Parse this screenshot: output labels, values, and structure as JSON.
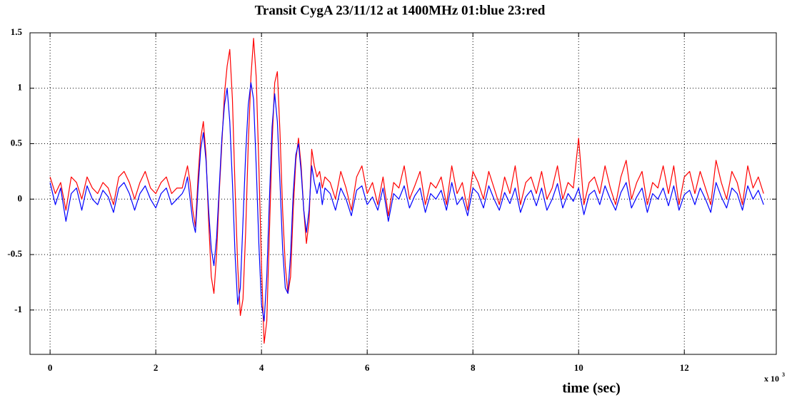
{
  "chart_data": {
    "type": "line",
    "title": "Transit CygA 23/11/12 at 1400MHz 01:blue 23:red",
    "xlabel": "time (sec)",
    "x_multiplier": {
      "base": "x 10",
      "exponent": "3"
    },
    "x": [
      0,
      0.1,
      0.2,
      0.3,
      0.4,
      0.5,
      0.6,
      0.7,
      0.8,
      0.9,
      1.0,
      1.1,
      1.2,
      1.3,
      1.4,
      1.5,
      1.6,
      1.7,
      1.8,
      1.9,
      2.0,
      2.1,
      2.2,
      2.3,
      2.4,
      2.5,
      2.55,
      2.6,
      2.65,
      2.7,
      2.75,
      2.8,
      2.85,
      2.9,
      2.95,
      3.0,
      3.05,
      3.1,
      3.15,
      3.2,
      3.25,
      3.3,
      3.35,
      3.4,
      3.45,
      3.5,
      3.55,
      3.6,
      3.65,
      3.7,
      3.75,
      3.8,
      3.85,
      3.9,
      3.95,
      4.0,
      4.05,
      4.1,
      4.15,
      4.2,
      4.25,
      4.3,
      4.35,
      4.4,
      4.45,
      4.5,
      4.55,
      4.6,
      4.65,
      4.7,
      4.75,
      4.8,
      4.85,
      4.9,
      4.95,
      5.0,
      5.05,
      5.1,
      5.15,
      5.2,
      5.3,
      5.4,
      5.5,
      5.6,
      5.7,
      5.8,
      5.9,
      6.0,
      6.1,
      6.2,
      6.3,
      6.4,
      6.5,
      6.6,
      6.7,
      6.8,
      6.9,
      7.0,
      7.1,
      7.2,
      7.3,
      7.4,
      7.5,
      7.6,
      7.7,
      7.8,
      7.9,
      8.0,
      8.1,
      8.2,
      8.3,
      8.4,
      8.5,
      8.6,
      8.7,
      8.8,
      8.9,
      9.0,
      9.1,
      9.2,
      9.3,
      9.4,
      9.5,
      9.6,
      9.7,
      9.8,
      9.9,
      10.0,
      10.1,
      10.2,
      10.3,
      10.4,
      10.5,
      10.6,
      10.7,
      10.8,
      10.9,
      11.0,
      11.1,
      11.2,
      11.3,
      11.4,
      11.5,
      11.6,
      11.7,
      11.8,
      11.9,
      12.0,
      12.1,
      12.2,
      12.3,
      12.4,
      12.5,
      12.6,
      12.7,
      12.8,
      12.9,
      13.0,
      13.1,
      13.2,
      13.3,
      13.4,
      13.5
    ],
    "series": [
      {
        "name": "23",
        "color": "#ff0000",
        "values": [
          0.2,
          0.05,
          0.15,
          -0.1,
          0.2,
          0.15,
          0.0,
          0.2,
          0.1,
          0.05,
          0.15,
          0.1,
          -0.05,
          0.2,
          0.25,
          0.15,
          0.0,
          0.15,
          0.25,
          0.1,
          0.05,
          0.15,
          0.2,
          0.05,
          0.1,
          0.1,
          0.2,
          0.3,
          0.15,
          -0.1,
          -0.25,
          0.2,
          0.55,
          0.7,
          0.4,
          -0.2,
          -0.7,
          -0.85,
          -0.5,
          0.05,
          0.5,
          0.95,
          1.2,
          1.35,
          0.9,
          0.1,
          -0.6,
          -1.05,
          -0.9,
          -0.3,
          0.5,
          1.1,
          1.45,
          1.1,
          0.3,
          -0.6,
          -1.3,
          -1.1,
          -0.3,
          0.5,
          1.05,
          1.15,
          0.6,
          -0.1,
          -0.6,
          -0.85,
          -0.7,
          -0.1,
          0.35,
          0.55,
          0.3,
          -0.1,
          -0.4,
          -0.2,
          0.45,
          0.3,
          0.2,
          0.25,
          0.1,
          0.2,
          0.15,
          0.0,
          0.25,
          0.1,
          -0.1,
          0.2,
          0.3,
          0.05,
          0.15,
          -0.05,
          0.2,
          -0.15,
          0.15,
          0.1,
          0.3,
          0.0,
          0.12,
          0.25,
          -0.05,
          0.15,
          0.1,
          0.2,
          -0.05,
          0.3,
          0.05,
          0.15,
          -0.1,
          0.25,
          0.15,
          0.0,
          0.25,
          0.1,
          -0.05,
          0.2,
          0.05,
          0.3,
          -0.05,
          0.15,
          0.2,
          0.05,
          0.25,
          0.0,
          0.1,
          0.3,
          0.0,
          0.15,
          0.1,
          0.55,
          -0.05,
          0.15,
          0.2,
          0.05,
          0.3,
          0.1,
          -0.05,
          0.2,
          0.35,
          0.0,
          0.15,
          0.25,
          -0.05,
          0.15,
          0.1,
          0.3,
          0.05,
          0.3,
          -0.05,
          0.2,
          0.25,
          0.05,
          0.25,
          0.1,
          -0.05,
          0.35,
          0.15,
          0.0,
          0.25,
          0.15,
          -0.05,
          0.3,
          0.1,
          0.2,
          0.05
        ]
      },
      {
        "name": "01",
        "color": "#0000ff",
        "values": [
          0.15,
          -0.05,
          0.1,
          -0.2,
          0.05,
          0.1,
          -0.1,
          0.12,
          0.0,
          -0.05,
          0.08,
          0.02,
          -0.12,
          0.1,
          0.15,
          0.05,
          -0.1,
          0.05,
          0.12,
          0.0,
          -0.08,
          0.05,
          0.1,
          -0.05,
          0.0,
          0.05,
          0.1,
          0.2,
          0.0,
          -0.2,
          -0.3,
          0.1,
          0.45,
          0.6,
          0.35,
          -0.1,
          -0.45,
          -0.6,
          -0.35,
          0.1,
          0.55,
          0.85,
          1.0,
          0.7,
          0.15,
          -0.5,
          -0.95,
          -0.8,
          -0.2,
          0.4,
          0.85,
          1.05,
          0.9,
          0.3,
          -0.4,
          -0.95,
          -1.1,
          -0.7,
          0.0,
          0.65,
          0.95,
          0.7,
          0.15,
          -0.45,
          -0.8,
          -0.85,
          -0.5,
          0.05,
          0.4,
          0.5,
          0.25,
          -0.1,
          -0.3,
          -0.1,
          0.3,
          0.15,
          0.05,
          0.15,
          -0.05,
          0.1,
          0.05,
          -0.1,
          0.1,
          0.0,
          -0.15,
          0.08,
          0.12,
          -0.05,
          0.02,
          -0.1,
          0.1,
          -0.2,
          0.05,
          0.0,
          0.12,
          -0.08,
          0.03,
          0.1,
          -0.12,
          0.05,
          0.0,
          0.08,
          -0.1,
          0.15,
          -0.05,
          0.02,
          -0.15,
          0.1,
          0.05,
          -0.08,
          0.12,
          0.0,
          -0.1,
          0.06,
          -0.04,
          0.1,
          -0.12,
          0.02,
          0.08,
          -0.06,
          0.1,
          -0.1,
          0.0,
          0.14,
          -0.08,
          0.05,
          -0.02,
          0.1,
          -0.14,
          0.04,
          0.08,
          -0.05,
          0.12,
          0.0,
          -0.1,
          0.06,
          0.15,
          -0.08,
          0.02,
          0.1,
          -0.12,
          0.05,
          0.0,
          0.1,
          -0.06,
          0.12,
          -0.1,
          0.04,
          0.08,
          -0.05,
          0.1,
          0.0,
          -0.12,
          0.15,
          0.02,
          -0.08,
          0.1,
          0.05,
          -0.1,
          0.12,
          0.0,
          0.08,
          -0.05
        ]
      }
    ],
    "xlim": [
      -0.38,
      13.74
    ],
    "ylim": [
      -1.4,
      1.5
    ],
    "xticks": [
      0,
      2,
      4,
      6,
      8,
      10,
      12
    ],
    "yticks": [
      -1,
      -0.5,
      0,
      0.5,
      1,
      1.5
    ],
    "grid": true
  }
}
